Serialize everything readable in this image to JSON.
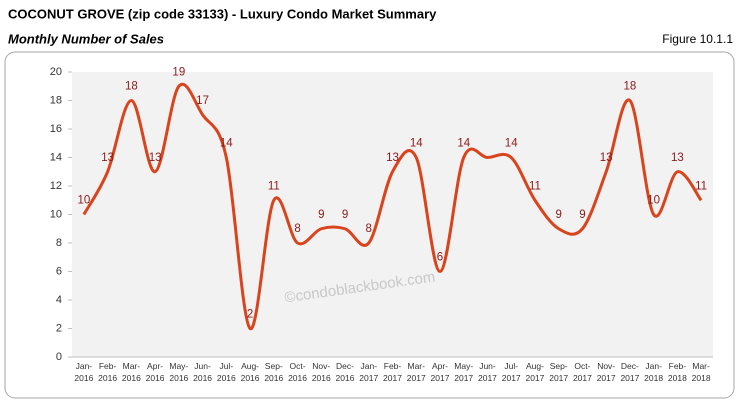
{
  "chart_data": {
    "type": "line",
    "title": "COCONUT GROVE (zip code 33133) - Luxury Condo Market Summary",
    "subtitle": "Monthly Number of Sales",
    "figure_label": "Figure 10.1.1",
    "watermark": "©condoblackbook.com",
    "categories": [
      "Jan-2016",
      "Feb-2016",
      "Mar-2016",
      "Apr-2016",
      "May-2016",
      "Jun-2016",
      "Jul-2016",
      "Aug-2016",
      "Sep-2016",
      "Oct-2016",
      "Nov-2016",
      "Dec-2016",
      "Jan-2017",
      "Feb-2017",
      "Mar-2017",
      "Apr-2017",
      "May-2017",
      "Jun-2017",
      "Jul-2017",
      "Aug-2017",
      "Sep-2017",
      "Oct-2017",
      "Nov-2017",
      "Dec-2017",
      "Jan-2018",
      "Feb-2018",
      "Mar-2018"
    ],
    "values": [
      10,
      13,
      18,
      13,
      19,
      17,
      14,
      2,
      11,
      8,
      9,
      9,
      8,
      13,
      14,
      6,
      14,
      14,
      14,
      11,
      9,
      9,
      13,
      18,
      10,
      13,
      11
    ],
    "value_labels": [
      "10",
      "13",
      "18",
      "13",
      "19",
      "17",
      "14",
      "2",
      "11",
      "8",
      "9",
      "9",
      "8",
      "13",
      "14",
      "6",
      "14",
      null,
      "14",
      "11",
      "9",
      "9",
      "13",
      "18",
      "10",
      "13",
      "11"
    ],
    "color": "#d9441c",
    "ylim": [
      0,
      20
    ],
    "yticks": [
      0,
      2,
      4,
      6,
      8,
      10,
      12,
      14,
      16,
      18,
      20
    ],
    "grid": false
  }
}
